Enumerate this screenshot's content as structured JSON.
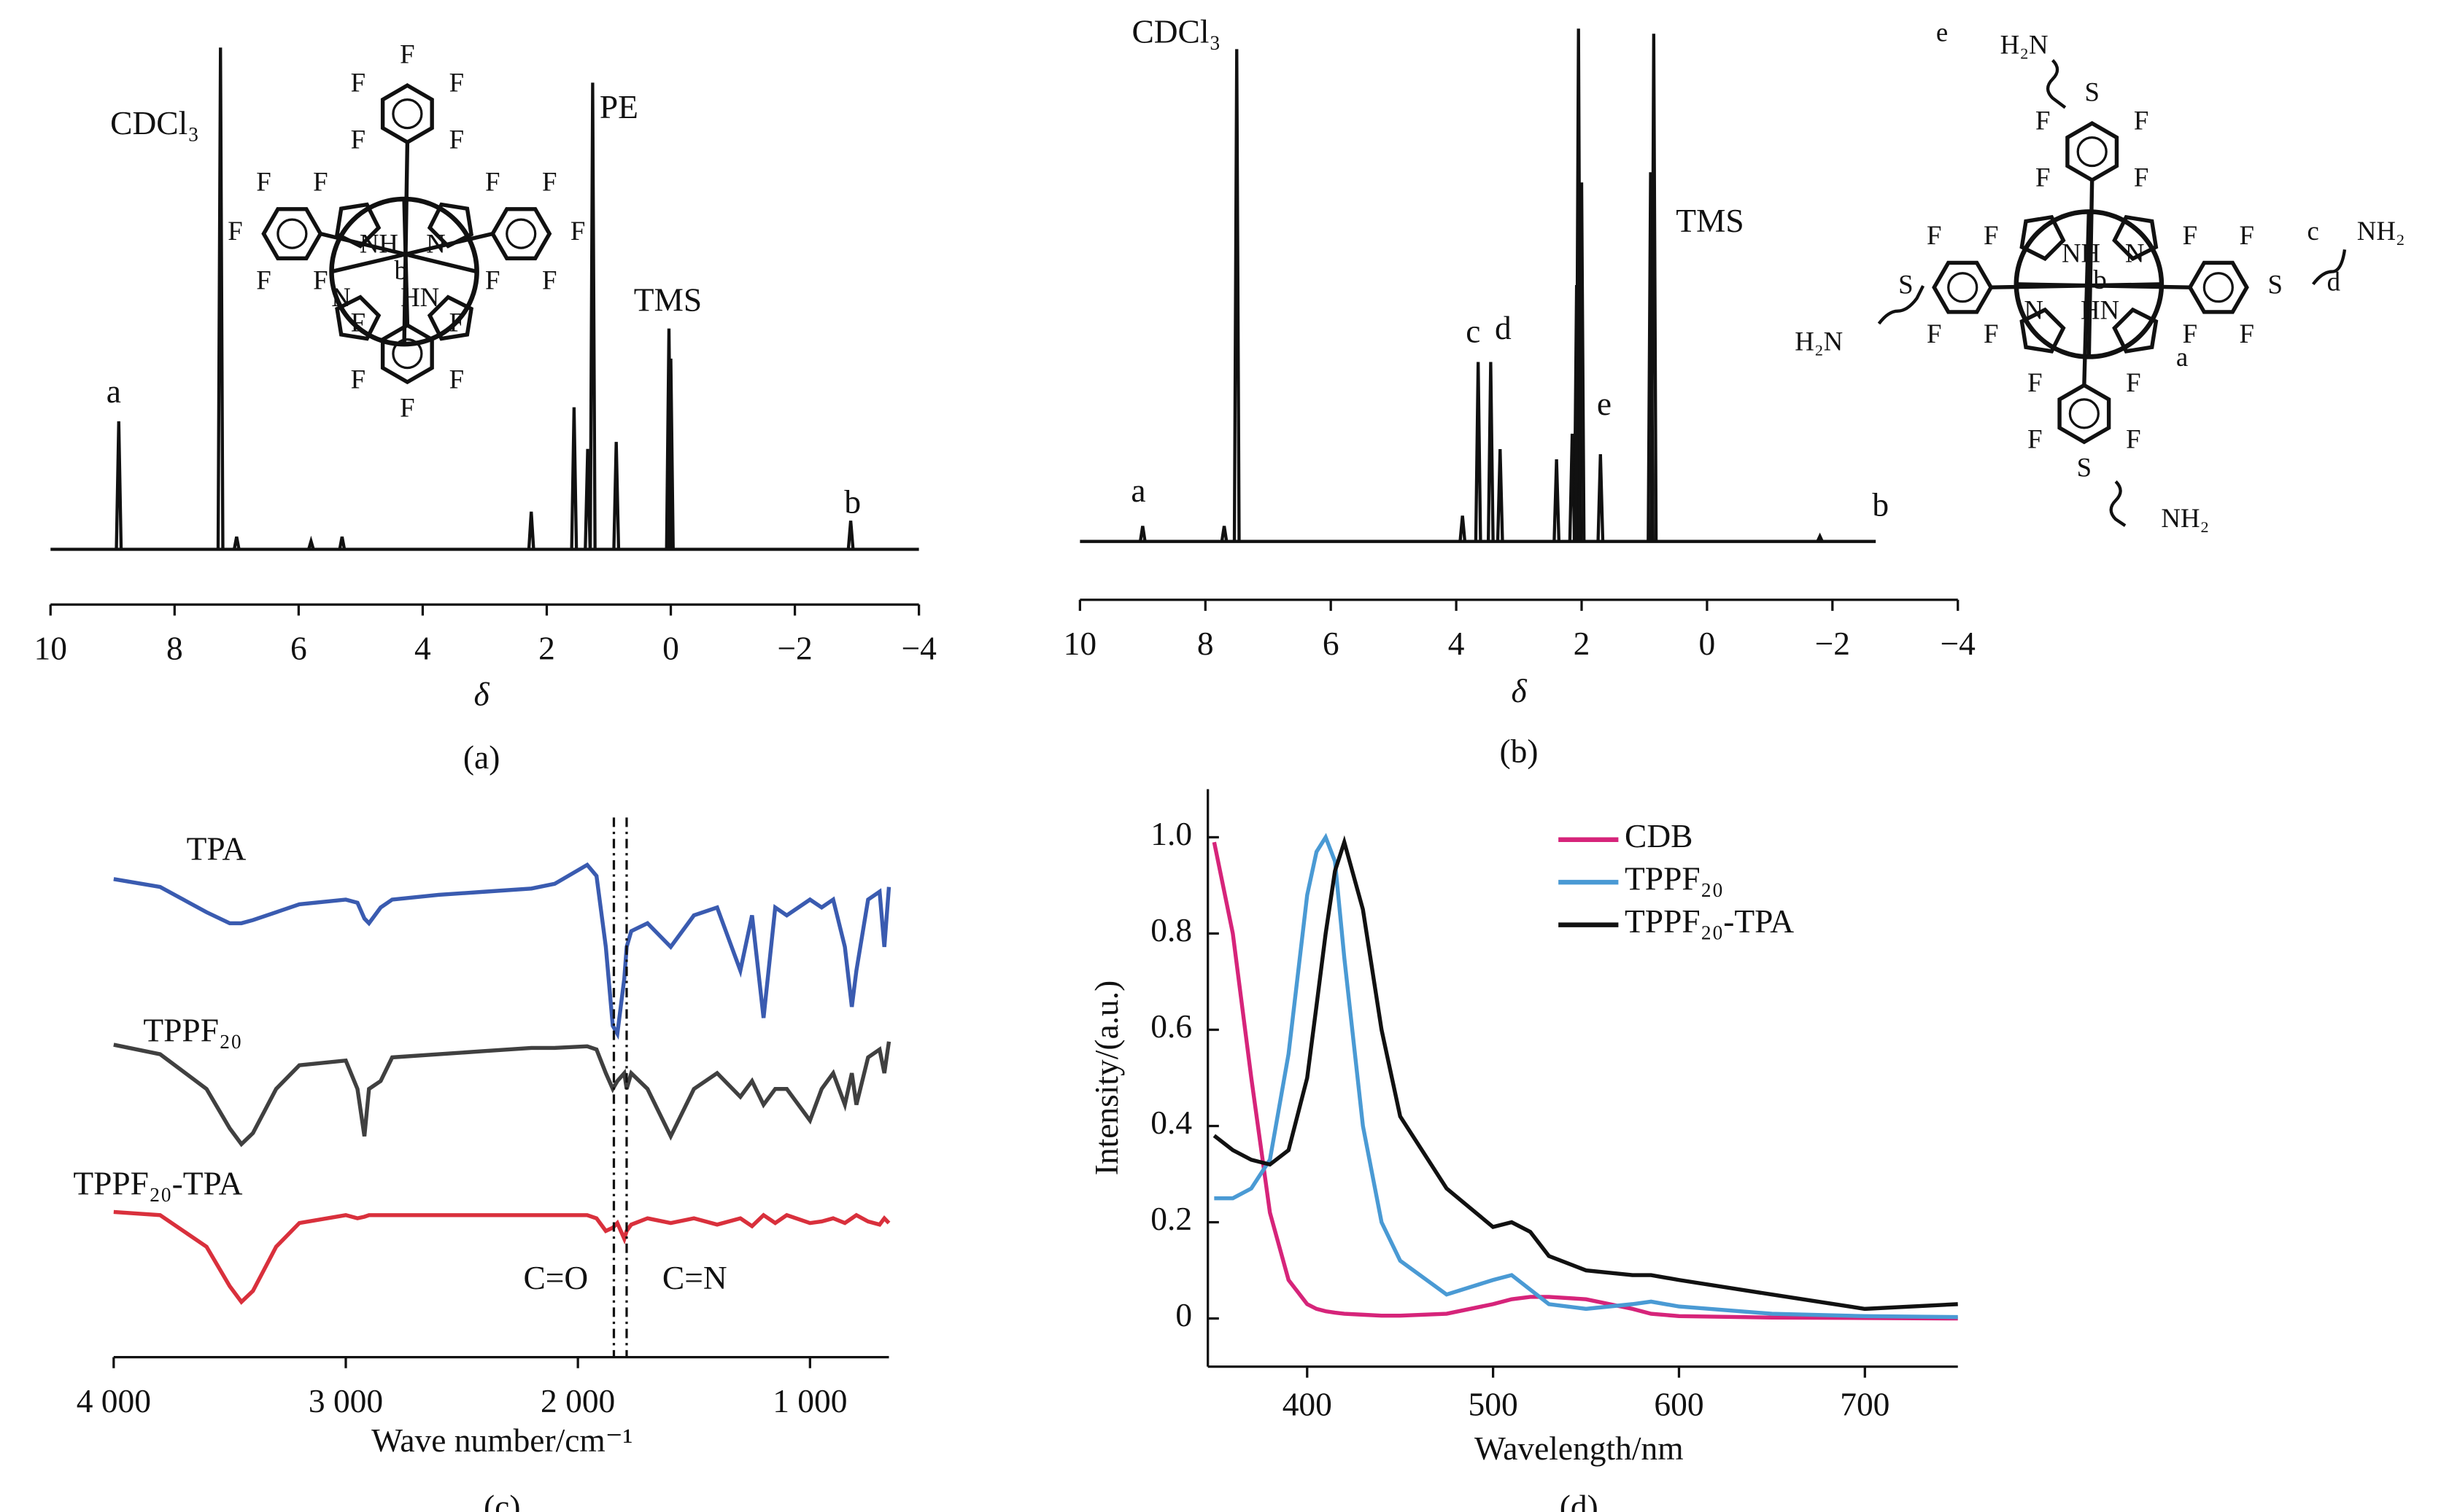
{
  "chart_data": [
    {
      "type": "stick",
      "xlabel": "δ",
      "caption": "(a)",
      "color": "#111111",
      "xlim": [
        10,
        -4
      ],
      "xticks": [
        10,
        8,
        6,
        4,
        2,
        0,
        {
          "value": -2,
          "label": "−2"
        },
        {
          "value": -4,
          "label": "−4"
        }
      ],
      "ylim": [
        0,
        100
      ],
      "x": [
        8.9,
        7.26,
        7.0,
        5.8,
        5.3,
        2.25,
        1.56,
        1.34,
        1.26,
        0.88,
        0.03,
        0.0,
        -2.9
      ],
      "values": [
        25.5,
        100,
        2.5,
        1.6,
        2.5,
        7.5,
        28.3,
        20,
        93,
        21.4,
        44,
        38,
        5.7
      ],
      "annotations": [
        "a",
        "CDCl₃",
        "PE",
        "TMS",
        "b"
      ],
      "structure_labels": [
        "F",
        "F",
        "F",
        "F",
        "F",
        "F",
        "F",
        "F",
        "F",
        "F",
        "F",
        "F",
        "F",
        "F",
        "F",
        "F",
        "F",
        "F",
        "F",
        "F",
        "NH",
        "N",
        "N",
        "HN",
        "b"
      ]
    },
    {
      "type": "stick",
      "xlabel": "δ",
      "caption": "(b)",
      "color": "#111111",
      "xlim": [
        10,
        -4
      ],
      "xticks": [
        10,
        8,
        6,
        4,
        2,
        0,
        {
          "value": -2,
          "label": "−2"
        },
        {
          "value": -4,
          "label": "−4"
        }
      ],
      "ylim": [
        0,
        100
      ],
      "x": [
        9.0,
        7.7,
        7.5,
        3.9,
        3.65,
        3.45,
        3.3,
        2.4,
        2.15,
        2.08,
        2.05,
        2.0,
        1.7,
        0.9,
        0.85,
        -1.8
      ],
      "values": [
        3,
        3,
        96,
        5,
        35,
        35,
        18,
        16,
        21,
        50,
        100,
        70,
        17,
        72,
        99,
        1
      ],
      "annotations": [
        "a",
        "CDCl₃",
        "c",
        "d",
        "e",
        "TMS",
        "b"
      ],
      "structure_labels": [
        "F",
        "F",
        "F",
        "F",
        "F",
        "F",
        "F",
        "F",
        "F",
        "F",
        "F",
        "F",
        "F",
        "F",
        "F",
        "F",
        "S",
        "S",
        "S",
        "S",
        "e",
        "H₂N",
        "c",
        "NH₂",
        "d",
        "H₂N",
        "a",
        "NH₂",
        "NH",
        "N",
        "b",
        "N",
        "HN"
      ]
    },
    {
      "type": "line",
      "xlabel": "Wave number/cm⁻¹",
      "caption": "(c)",
      "xlim": [
        4000,
        660
      ],
      "xticks": [
        {
          "value": 4000,
          "label": "4 000"
        },
        {
          "value": 3000,
          "label": "3 000"
        },
        {
          "value": 2000,
          "label": "2 000"
        },
        {
          "value": 1000,
          "label": "1 000"
        }
      ],
      "ylim": [
        0,
        340
      ],
      "legend": false,
      "x": [
        4000,
        3800,
        3600,
        3500,
        3450,
        3400,
        3300,
        3200,
        3000,
        2950,
        2920,
        2900,
        2850,
        2800,
        2600,
        2400,
        2200,
        2100,
        1960,
        1920,
        1880,
        1850,
        1830,
        1800,
        1790,
        1770,
        1700,
        1600,
        1500,
        1400,
        1300,
        1250,
        1200,
        1150,
        1100,
        1000,
        950,
        900,
        850,
        820,
        800,
        750,
        700,
        680,
        660
      ],
      "series": [
        {
          "name": "TPA",
          "color": "#3a5bb0",
          "values": [
            303,
            298,
            282,
            275,
            275,
            277,
            282,
            287,
            290,
            288,
            278,
            275,
            285,
            290,
            293,
            295,
            297,
            300,
            312,
            305,
            260,
            210,
            205,
            240,
            260,
            270,
            275,
            260,
            280,
            285,
            245,
            280,
            215,
            285,
            280,
            290,
            285,
            290,
            260,
            222,
            245,
            290,
            295,
            260,
            298
          ]
        },
        {
          "name": "TPPF₂₀",
          "color": "#404040",
          "values": [
            198,
            192,
            170,
            145,
            135,
            142,
            170,
            185,
            188,
            170,
            140,
            170,
            175,
            190,
            192,
            194,
            196,
            196,
            197,
            195,
            180,
            170,
            175,
            180,
            170,
            180,
            170,
            140,
            170,
            180,
            165,
            175,
            160,
            170,
            170,
            150,
            170,
            180,
            160,
            180,
            160,
            190,
            195,
            180,
            200
          ]
        },
        {
          "name": "TPPF₂₀-TPA",
          "color": "#d9303c",
          "values": [
            92,
            90,
            70,
            45,
            35,
            42,
            70,
            85,
            90,
            88,
            89,
            90,
            90,
            90,
            90,
            90,
            90,
            90,
            90,
            88,
            80,
            82,
            85,
            75,
            80,
            84,
            88,
            85,
            88,
            84,
            88,
            83,
            90,
            85,
            90,
            85,
            86,
            88,
            85,
            88,
            90,
            86,
            84,
            88,
            85
          ]
        }
      ],
      "vlines": [
        {
          "value": 1845,
          "label": "C=O"
        },
        {
          "value": 1790,
          "label": "C=N"
        }
      ]
    },
    {
      "type": "line",
      "xlabel": "Wavelength/nm",
      "ylabel": "Intensity/(a.u.)",
      "caption": "(d)",
      "xlim": [
        350,
        750
      ],
      "xticks": [
        400,
        500,
        600,
        700
      ],
      "ylim": [
        -0.1,
        1.1
      ],
      "yticks": [
        0,
        0.2,
        0.4,
        0.6,
        0.8,
        {
          "value": 1,
          "label": "1.0"
        }
      ],
      "legend": "upper right",
      "x": [
        350,
        360,
        370,
        380,
        390,
        400,
        405,
        410,
        415,
        420,
        430,
        440,
        450,
        475,
        500,
        510,
        520,
        530,
        550,
        575,
        585,
        600,
        650,
        700,
        750
      ],
      "series": [
        {
          "name": "CDB",
          "color": "#d6247a",
          "values": [
            0.99,
            0.8,
            0.5,
            0.22,
            0.08,
            0.03,
            0.02,
            0.015,
            0.012,
            0.01,
            0.008,
            0.006,
            0.006,
            0.01,
            0.03,
            0.04,
            0.045,
            0.045,
            0.04,
            0.02,
            0.01,
            0.005,
            0.002,
            0.001,
            0.0
          ]
        },
        {
          "name": "TPPF₂₀",
          "color": "#4a9ad4",
          "values": [
            0.25,
            0.25,
            0.27,
            0.33,
            0.55,
            0.88,
            0.97,
            1.0,
            0.95,
            0.75,
            0.4,
            0.2,
            0.12,
            0.05,
            0.08,
            0.09,
            0.06,
            0.03,
            0.02,
            0.03,
            0.035,
            0.025,
            0.01,
            0.005,
            0.003
          ]
        },
        {
          "name": "TPPF₂₀-TPA",
          "color": "#111111",
          "values": [
            0.38,
            0.35,
            0.33,
            0.32,
            0.35,
            0.5,
            0.65,
            0.8,
            0.93,
            0.99,
            0.85,
            0.6,
            0.42,
            0.27,
            0.19,
            0.2,
            0.18,
            0.13,
            0.1,
            0.09,
            0.09,
            0.08,
            0.05,
            0.02,
            0.03
          ]
        }
      ]
    }
  ]
}
